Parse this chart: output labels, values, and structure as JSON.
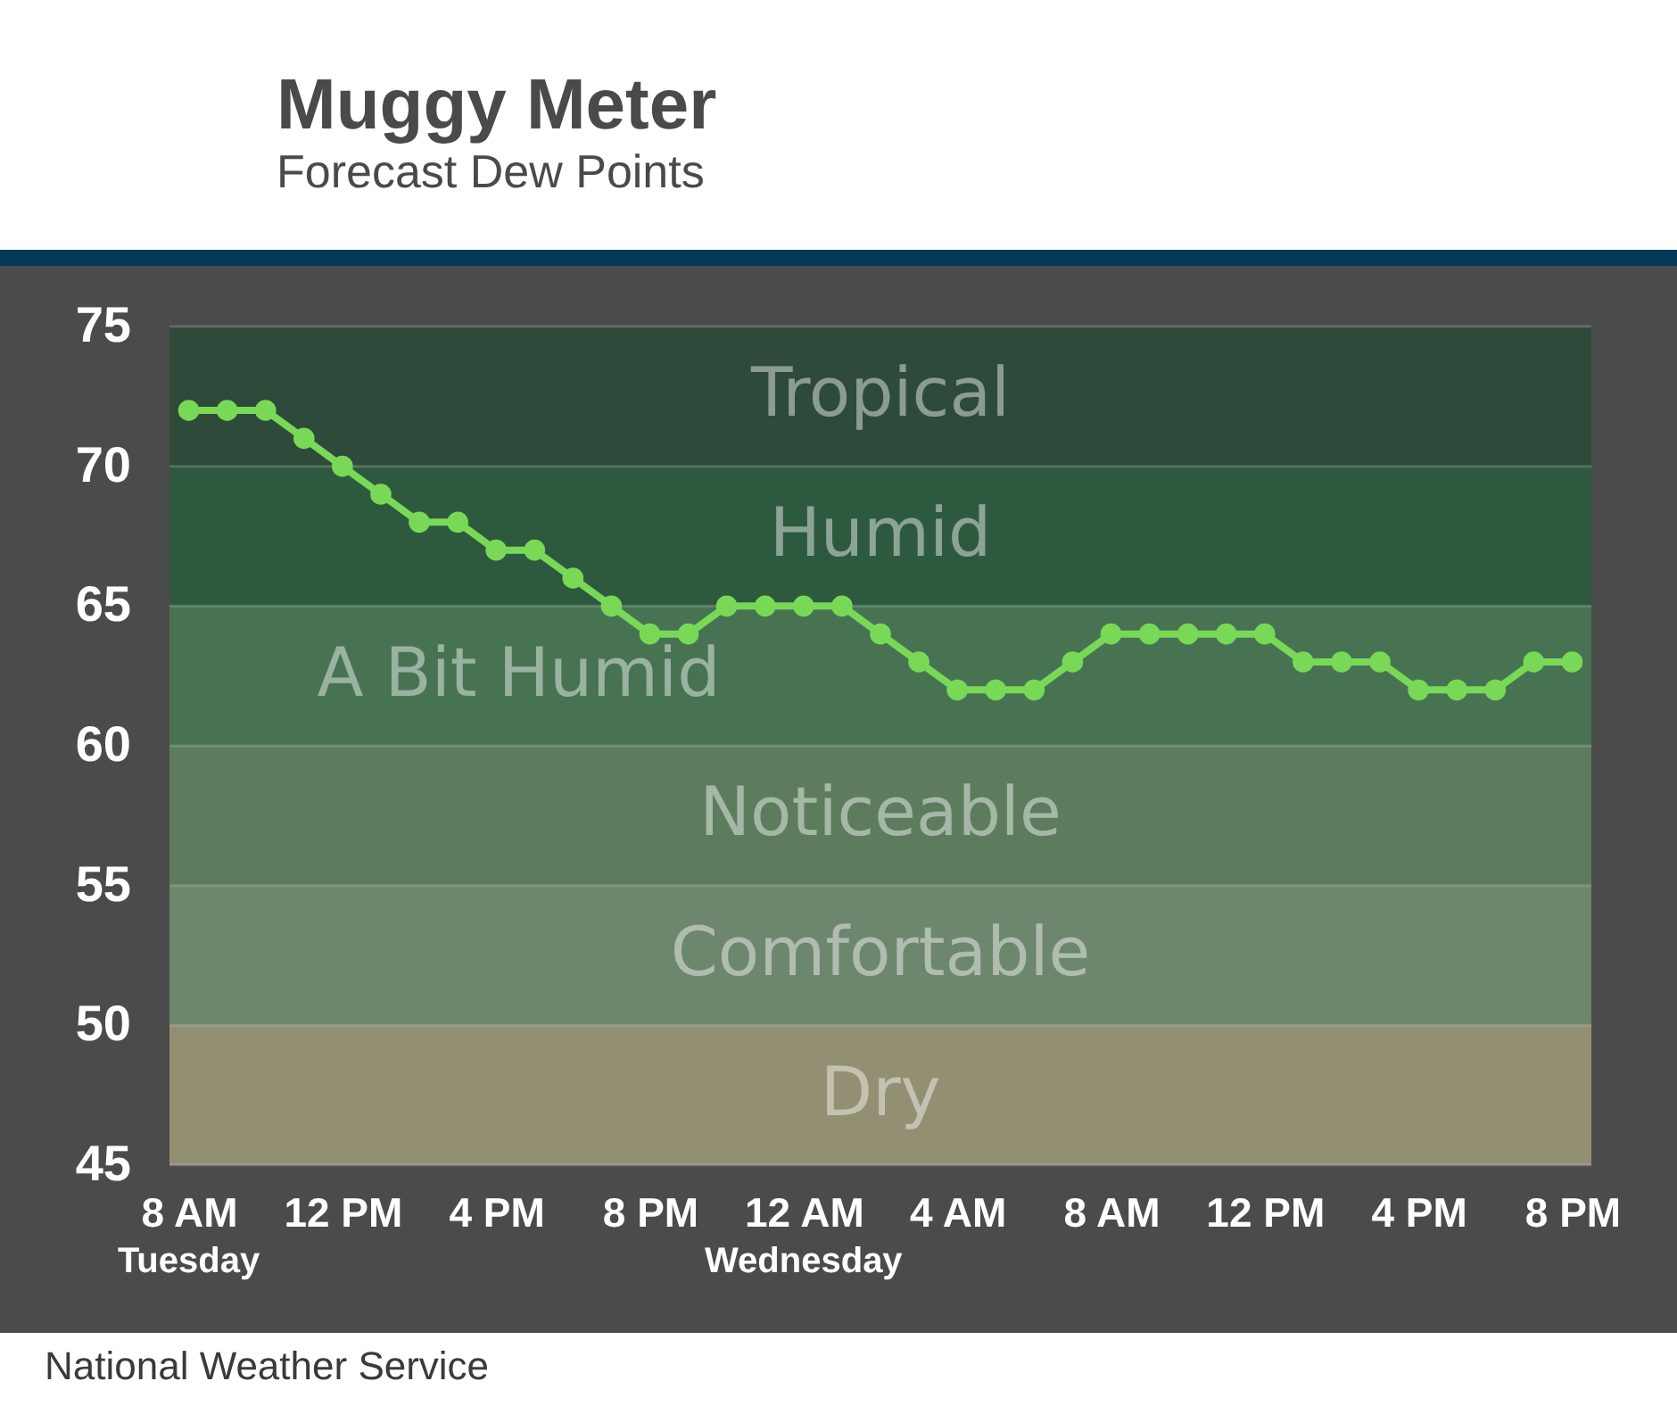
{
  "chart_data": {
    "type": "line",
    "title": "Muggy Meter",
    "subtitle": "Forecast Dew Points",
    "categories": [
      "8 AM\nTuesday",
      null,
      null,
      null,
      "12 PM",
      null,
      null,
      null,
      "4 PM",
      null,
      null,
      null,
      "8 PM",
      null,
      null,
      null,
      "12 AM\nWednesday",
      null,
      null,
      null,
      "4 AM",
      null,
      null,
      null,
      "8 AM",
      null,
      null,
      null,
      "12 PM",
      null,
      null,
      null,
      "4 PM",
      null,
      null,
      null,
      "8 PM"
    ],
    "series": [
      {
        "color": "#79d957",
        "values": [
          72,
          72,
          72,
          71,
          70,
          69,
          68,
          68,
          67,
          67,
          66,
          65,
          64,
          64,
          65,
          65,
          65,
          65,
          64,
          63,
          62,
          62,
          62,
          63,
          64,
          64,
          64,
          64,
          64,
          63,
          63,
          63,
          62,
          62,
          62,
          63,
          63
        ]
      }
    ],
    "ylim": [
      45,
      75
    ],
    "yticks": [
      45,
      50,
      55,
      60,
      65,
      70,
      75
    ],
    "bands": [
      {
        "axis": "y",
        "from": 70,
        "to": 75,
        "label": "Tropical",
        "color": "#2e4a3b"
      },
      {
        "axis": "y",
        "from": 65,
        "to": 70,
        "label": "Humid",
        "color": "#2d5a3f"
      },
      {
        "axis": "y",
        "from": 60,
        "to": 65,
        "label": "A Bit Humid",
        "color": "#477353"
      },
      {
        "axis": "y",
        "from": 55,
        "to": 60,
        "label": "Noticeable",
        "color": "#5c7c5d"
      },
      {
        "axis": "y",
        "from": 50,
        "to": 55,
        "label": "Comfortable",
        "color": "#6d866e"
      },
      {
        "axis": "y",
        "from": 45,
        "to": 50,
        "label": "Dry",
        "color": "#938f72"
      }
    ],
    "grid": "y",
    "marker": "circle",
    "line_style": "solid",
    "annotations": [
      "National Weather Service"
    ]
  }
}
